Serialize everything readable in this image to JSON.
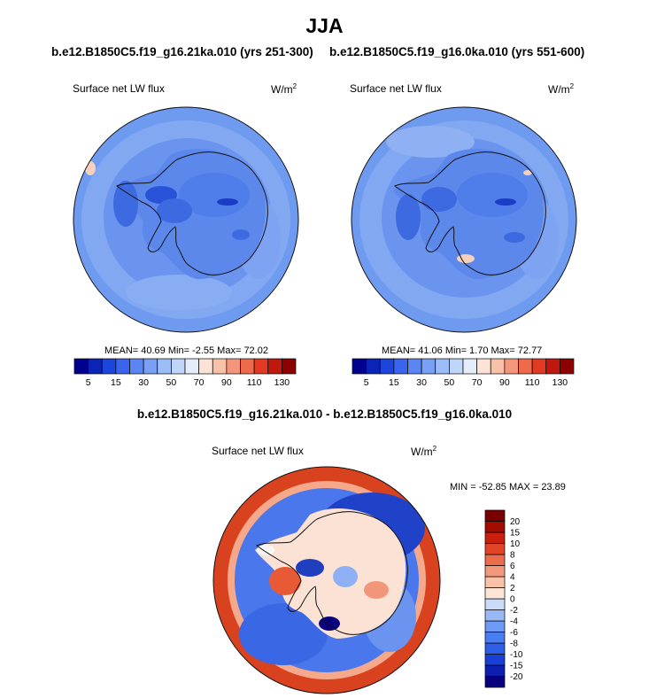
{
  "figure": {
    "season_title": "JJA",
    "diff_title": "b.e12.B1850C5.f19_g16.21ka.010 - b.e12.B1850C5.f19_g16.0ka.010"
  },
  "panels": [
    {
      "case_title": "b.e12.B1850C5.f19_g16.21ka.010 (yrs 251-300)",
      "variable": "Surface net LW flux",
      "units_base": "W/m",
      "units_exp": "2",
      "stats": "MEAN= 40.69  Min= -2.55  Max= 72.02"
    },
    {
      "case_title": "b.e12.B1850C5.f19_g16.0ka.010 (yrs 551-600)",
      "variable": "Surface net LW flux",
      "units_base": "W/m",
      "units_exp": "2",
      "stats": "MEAN= 41.06  Min=  1.70  Max= 72.77"
    }
  ],
  "diff_panel": {
    "variable": "Surface net LW flux",
    "units_base": "W/m",
    "units_exp": "2",
    "minmax": "MIN = -52.85 MAX =  23.89"
  },
  "chart_data": [
    {
      "type": "heatmap",
      "title": "b.e12.B1850C5.f19_g16.21ka.010 (yrs 251-300)",
      "variable": "Surface net LW flux",
      "units": "W/m2",
      "projection": "south polar stereographic",
      "summary": {
        "mean": 40.69,
        "min": -2.55,
        "max": 72.02
      },
      "colorbar": {
        "orientation": "horizontal",
        "levels": [
          5,
          10,
          15,
          20,
          30,
          40,
          50,
          60,
          70,
          80,
          90,
          100,
          110,
          120,
          130
        ],
        "tick_labels": [
          "5",
          "15",
          "30",
          "50",
          "70",
          "90",
          "110",
          "130"
        ],
        "colors": [
          "#00008f",
          "#0a24b8",
          "#1c45dc",
          "#3a64ec",
          "#5b85f2",
          "#7aa0f5",
          "#9bbcf7",
          "#c0d6f9",
          "#e4eefb",
          "#fce3d6",
          "#f9c1a8",
          "#f49679",
          "#ee6a4a",
          "#e03a22",
          "#be180f",
          "#8c0000"
        ]
      }
    },
    {
      "type": "heatmap",
      "title": "b.e12.B1850C5.f19_g16.0ka.010 (yrs 551-600)",
      "variable": "Surface net LW flux",
      "units": "W/m2",
      "projection": "south polar stereographic",
      "summary": {
        "mean": 41.06,
        "min": 1.7,
        "max": 72.77
      },
      "colorbar": {
        "orientation": "horizontal",
        "levels": [
          5,
          10,
          15,
          20,
          30,
          40,
          50,
          60,
          70,
          80,
          90,
          100,
          110,
          120,
          130
        ],
        "tick_labels": [
          "5",
          "15",
          "30",
          "50",
          "70",
          "90",
          "110",
          "130"
        ],
        "colors": [
          "#00008f",
          "#0a24b8",
          "#1c45dc",
          "#3a64ec",
          "#5b85f2",
          "#7aa0f5",
          "#9bbcf7",
          "#c0d6f9",
          "#e4eefb",
          "#fce3d6",
          "#f9c1a8",
          "#f49679",
          "#ee6a4a",
          "#e03a22",
          "#be180f",
          "#8c0000"
        ]
      }
    },
    {
      "type": "heatmap",
      "title": "b.e12.B1850C5.f19_g16.21ka.010 - b.e12.B1850C5.f19_g16.0ka.010",
      "variable": "Surface net LW flux",
      "units": "W/m2",
      "projection": "south polar stereographic",
      "summary": {
        "min": -52.85,
        "max": 23.89
      },
      "colorbar": {
        "orientation": "vertical",
        "levels": [
          -20,
          -15,
          -10,
          -8,
          -6,
          -4,
          -2,
          0,
          2,
          4,
          6,
          8,
          10,
          15,
          20
        ],
        "tick_labels": [
          "-20",
          "-15",
          "-10",
          "-8",
          "-6",
          "-4",
          "-2",
          "0",
          "2",
          "4",
          "6",
          "8",
          "10",
          "15",
          "20"
        ],
        "colors": [
          "#08007f",
          "#0c1fb0",
          "#1a3fd6",
          "#2d5ee8",
          "#4a7def",
          "#6e9bf3",
          "#98b9f6",
          "#cbdcfa",
          "#fde5d8",
          "#f8c2a9",
          "#f2987b",
          "#eb6d4d",
          "#e24427",
          "#c8200d",
          "#a30d00",
          "#7a0000"
        ]
      }
    }
  ]
}
